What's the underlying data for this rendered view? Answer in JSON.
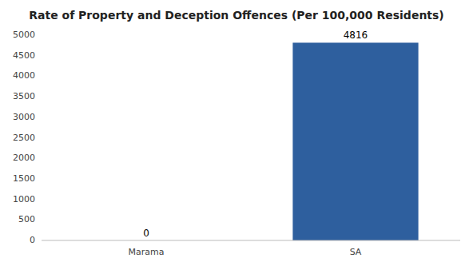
{
  "chart_data": {
    "type": "bar",
    "title": "Rate of Property and Deception Offences (Per 100,000 Residents)",
    "categories": [
      "Marama",
      "SA"
    ],
    "values": [
      0,
      4816
    ],
    "color": "#2e5f9e",
    "ylim": [
      0,
      5000
    ],
    "yticks": [
      0,
      500,
      1000,
      1500,
      2000,
      2500,
      3000,
      3500,
      4000,
      4500,
      5000
    ],
    "grid": false,
    "data_labels": true
  }
}
